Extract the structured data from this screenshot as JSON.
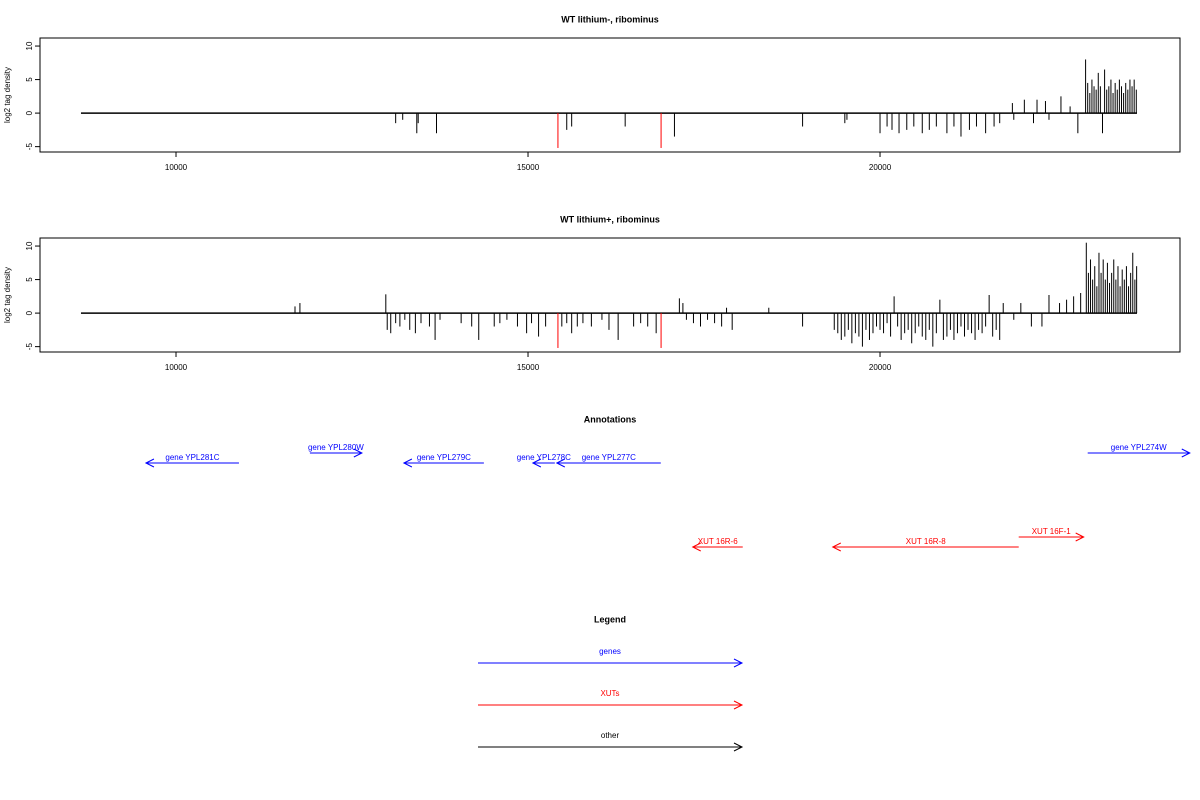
{
  "chart_data": [
    {
      "type": "bar",
      "title": "WT lithium-, ribominus",
      "y_label": "log2 tag density",
      "xlim": [
        8068,
        24261
      ],
      "ylim": [
        -5.8,
        11.2
      ],
      "xticks": [
        10000,
        15000,
        20000
      ],
      "yticks": [
        -5,
        0,
        5,
        10
      ],
      "track_range": [
        8650,
        23650
      ],
      "series": [
        {
          "color": "#000000",
          "x": [
            13120,
            13220,
            13420,
            13440,
            13700,
            15550,
            15620,
            16380,
            17080,
            18900,
            19500,
            19530,
            20000,
            20100,
            20170,
            20270,
            20380,
            20480,
            20600,
            20700,
            20800,
            20950,
            21050,
            21150,
            21270,
            21370,
            21500,
            21620,
            21700,
            21880,
            21900,
            22050,
            22180,
            22230,
            22350,
            22400,
            22570,
            22700,
            22810,
            22920,
            22950,
            22980,
            23010,
            23040,
            23070,
            23100,
            23130,
            23160,
            23190,
            23220,
            23250,
            23280,
            23310,
            23340,
            23370,
            23400,
            23430,
            23460,
            23490,
            23520,
            23550,
            23580,
            23610,
            23640
          ],
          "values": [
            -1.5,
            -1,
            -3,
            -1.5,
            -3,
            -2.5,
            -2,
            -2,
            -3.5,
            -2,
            -1.5,
            -1,
            -3,
            -2,
            -2.5,
            -3,
            -2.5,
            -2,
            -3,
            -2.5,
            -2,
            -3,
            -2,
            -3.5,
            -2.5,
            -2,
            -3,
            -2,
            -1.5,
            1.5,
            -1,
            2,
            -1.5,
            2,
            1.8,
            -1,
            2.5,
            1,
            -3,
            8,
            4.5,
            3,
            5,
            4,
            3.5,
            6,
            4,
            -3,
            6.5,
            3.5,
            4,
            5,
            3,
            4.5,
            3.5,
            5,
            4,
            3,
            4.5,
            3.5,
            5,
            4,
            5,
            3.5
          ]
        },
        {
          "color": "#ff0000",
          "x": [
            15425,
            16890
          ],
          "values": [
            -5.2,
            -5.2
          ]
        }
      ]
    },
    {
      "type": "bar",
      "title": "WT lithium+, ribominus",
      "y_label": "log2 tag density",
      "xlim": [
        8068,
        24261
      ],
      "ylim": [
        -5.8,
        11.2
      ],
      "xticks": [
        10000,
        15000,
        20000
      ],
      "yticks": [
        -5,
        0,
        5,
        10
      ],
      "track_range": [
        8650,
        23650
      ],
      "series": [
        {
          "color": "#000000",
          "x": [
            11690,
            11760,
            12980,
            13000,
            13050,
            13120,
            13180,
            13250,
            13320,
            13400,
            13480,
            13600,
            13680,
            13750,
            14050,
            14200,
            14300,
            14520,
            14600,
            14700,
            14850,
            14980,
            15050,
            15150,
            15250,
            15480,
            15550,
            15620,
            15700,
            15780,
            15900,
            16050,
            16150,
            16280,
            16500,
            16600,
            16700,
            16820,
            17150,
            17200,
            17250,
            17350,
            17450,
            17550,
            17650,
            17750,
            17820,
            17900,
            18420,
            18900,
            19350,
            19400,
            19450,
            19500,
            19550,
            19600,
            19650,
            19700,
            19750,
            19800,
            19850,
            19900,
            19950,
            20000,
            20050,
            20100,
            20150,
            20200,
            20250,
            20300,
            20350,
            20400,
            20450,
            20500,
            20550,
            20600,
            20650,
            20700,
            20750,
            20800,
            20850,
            20900,
            20950,
            21000,
            21050,
            21100,
            21150,
            21200,
            21250,
            21300,
            21350,
            21400,
            21450,
            21500,
            21550,
            21600,
            21650,
            21700,
            21750,
            21900,
            22000,
            22150,
            22300,
            22400,
            22550,
            22650,
            22750,
            22850,
            22930,
            22960,
            22990,
            23020,
            23050,
            23080,
            23110,
            23140,
            23170,
            23200,
            23230,
            23260,
            23290,
            23320,
            23350,
            23380,
            23410,
            23440,
            23470,
            23500,
            23530,
            23560,
            23590,
            23620,
            23645
          ],
          "values": [
            1,
            1.5,
            2.8,
            -2.5,
            -3,
            -1.5,
            -2,
            -1,
            -2.5,
            -3,
            -1.5,
            -2,
            -4,
            -1,
            -1.5,
            -2,
            -4,
            -2,
            -1.5,
            -1,
            -2,
            -3,
            -1.5,
            -3.5,
            -2,
            -2,
            -1.5,
            -3,
            -2,
            -1.5,
            -2,
            -1,
            -2.5,
            -4,
            -2,
            -1.5,
            -2,
            -3,
            2.2,
            1.5,
            -1,
            -1.5,
            -2,
            -1,
            -1.5,
            -2,
            0.8,
            -2.5,
            0.8,
            -2,
            -2.5,
            -3,
            -4,
            -3.5,
            -2.5,
            -4.5,
            -3,
            -3.5,
            -5,
            -2.5,
            -4,
            -3,
            -2,
            -2.5,
            -3,
            -1.5,
            -3.5,
            2.5,
            -2,
            -4,
            -3,
            -2.5,
            -4.5,
            -3,
            -2,
            -3.5,
            -4,
            -2.5,
            -5,
            -3,
            2,
            -4,
            -3.5,
            -2.5,
            -4,
            -3,
            -2,
            -3.5,
            -2.5,
            -3,
            -4,
            -2.5,
            -3,
            -2,
            2.7,
            -3.5,
            -2.5,
            -4,
            1.5,
            -1,
            1.5,
            -2,
            -2,
            2.7,
            1.5,
            2,
            2.5,
            3,
            10.5,
            6,
            8,
            5,
            7,
            4,
            9,
            6,
            8,
            5,
            7.5,
            4.5,
            6,
            8,
            5,
            7,
            4,
            6.5,
            5,
            7,
            4,
            6,
            9,
            5,
            7
          ]
        },
        {
          "color": "#ff0000",
          "x": [
            15425,
            16890
          ],
          "values": [
            -5.2,
            -5.2
          ]
        }
      ]
    }
  ],
  "annotations": {
    "title": "Annotations",
    "features": [
      {
        "label": "gene YPL281C",
        "start": 9573,
        "end": 10894,
        "strand": "-",
        "color": "#0000ff"
      },
      {
        "label": "gene YPL280W",
        "start": 11902,
        "end": 12640,
        "strand": "+",
        "color": "#0000ff"
      },
      {
        "label": "gene YPL279C",
        "start": 13237,
        "end": 14373,
        "strand": "-",
        "color": "#0000ff"
      },
      {
        "label": "gene YPL278C",
        "start": 15069,
        "end": 15381,
        "strand": "-",
        "color": "#0000ff"
      },
      {
        "label": "gene YPL277C",
        "start": 15409,
        "end": 16886,
        "strand": "-",
        "color": "#0000ff"
      },
      {
        "label": "gene YPL274W",
        "start": 22950,
        "end": 24400,
        "strand": "+",
        "color": "#0000ff"
      },
      {
        "label": "XUT 16R-6",
        "start": 17340,
        "end": 18050,
        "strand": "-",
        "color": "#ff0000"
      },
      {
        "label": "XUT 16R-8",
        "start": 19329,
        "end": 21970,
        "strand": "-",
        "color": "#ff0000"
      },
      {
        "label": "XUT 16F-1",
        "start": 21970,
        "end": 22893,
        "strand": "+",
        "color": "#ff0000"
      }
    ]
  },
  "legend": {
    "title": "Legend",
    "items": [
      {
        "label": "genes",
        "color": "#0000ff"
      },
      {
        "label": "XUTs",
        "color": "#ff0000"
      },
      {
        "label": "other",
        "color": "#000000"
      }
    ]
  }
}
